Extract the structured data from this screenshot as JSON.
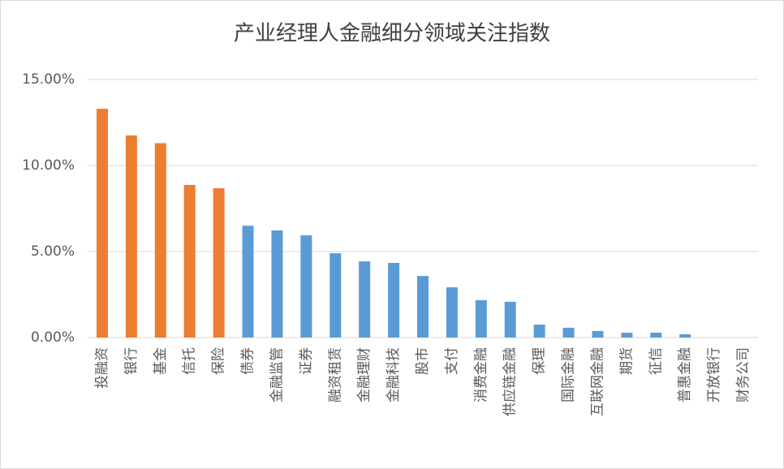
{
  "chart_data": {
    "type": "bar",
    "title": "产业经理人金融细分领域关注指数",
    "categories": [
      "投融资",
      "银行",
      "基金",
      "信托",
      "保险",
      "债券",
      "金融监管",
      "证券",
      "融资租赁",
      "金融理财",
      "金融科技",
      "股市",
      "支付",
      "消费金融",
      "供应链金融",
      "保理",
      "国际金融",
      "互联网金融",
      "期货",
      "征信",
      "普惠金融",
      "开放银行",
      "财务公司"
    ],
    "values": [
      13.3,
      11.75,
      11.3,
      8.87,
      8.68,
      6.5,
      6.23,
      5.94,
      4.9,
      4.43,
      4.34,
      3.58,
      2.92,
      2.17,
      2.08,
      0.75,
      0.57,
      0.38,
      0.28,
      0.28,
      0.19,
      0,
      0
    ],
    "colors": [
      "#ed7d31",
      "#ed7d31",
      "#ed7d31",
      "#ed7d31",
      "#ed7d31",
      "#5b9bd5",
      "#5b9bd5",
      "#5b9bd5",
      "#5b9bd5",
      "#5b9bd5",
      "#5b9bd5",
      "#5b9bd5",
      "#5b9bd5",
      "#5b9bd5",
      "#5b9bd5",
      "#5b9bd5",
      "#5b9bd5",
      "#5b9bd5",
      "#5b9bd5",
      "#5b9bd5",
      "#5b9bd5",
      "#5b9bd5",
      "#5b9bd5"
    ],
    "ylim": [
      0,
      15
    ],
    "yticks": [
      {
        "value": 0,
        "label": "0.00%"
      },
      {
        "value": 5,
        "label": "5.00%"
      },
      {
        "value": 10,
        "label": "10.00%"
      },
      {
        "value": 15,
        "label": "15.00%"
      }
    ],
    "grid": true
  }
}
